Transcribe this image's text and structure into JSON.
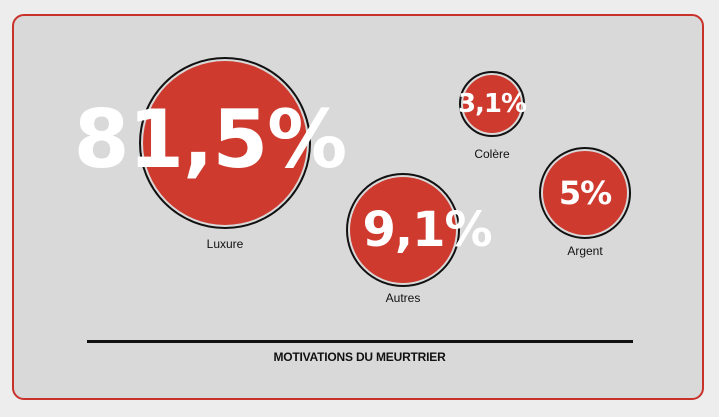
{
  "chart_data": {
    "type": "bubble",
    "title": "MOTIVATIONS DU MEURTRIER",
    "items": [
      {
        "label": "Luxure",
        "value": 81.5,
        "display": "81,5%"
      },
      {
        "label": "Colère",
        "value": 3.1,
        "display": "3,1%"
      },
      {
        "label": "Autres",
        "value": 9.1,
        "display": "9,1%"
      },
      {
        "label": "Argent",
        "value": 5,
        "display": "5%"
      }
    ],
    "colors": {
      "bubble": "#cf3a2f",
      "ring": "#111111",
      "frame": "#c9312b",
      "background": "#d9d9d9"
    }
  }
}
